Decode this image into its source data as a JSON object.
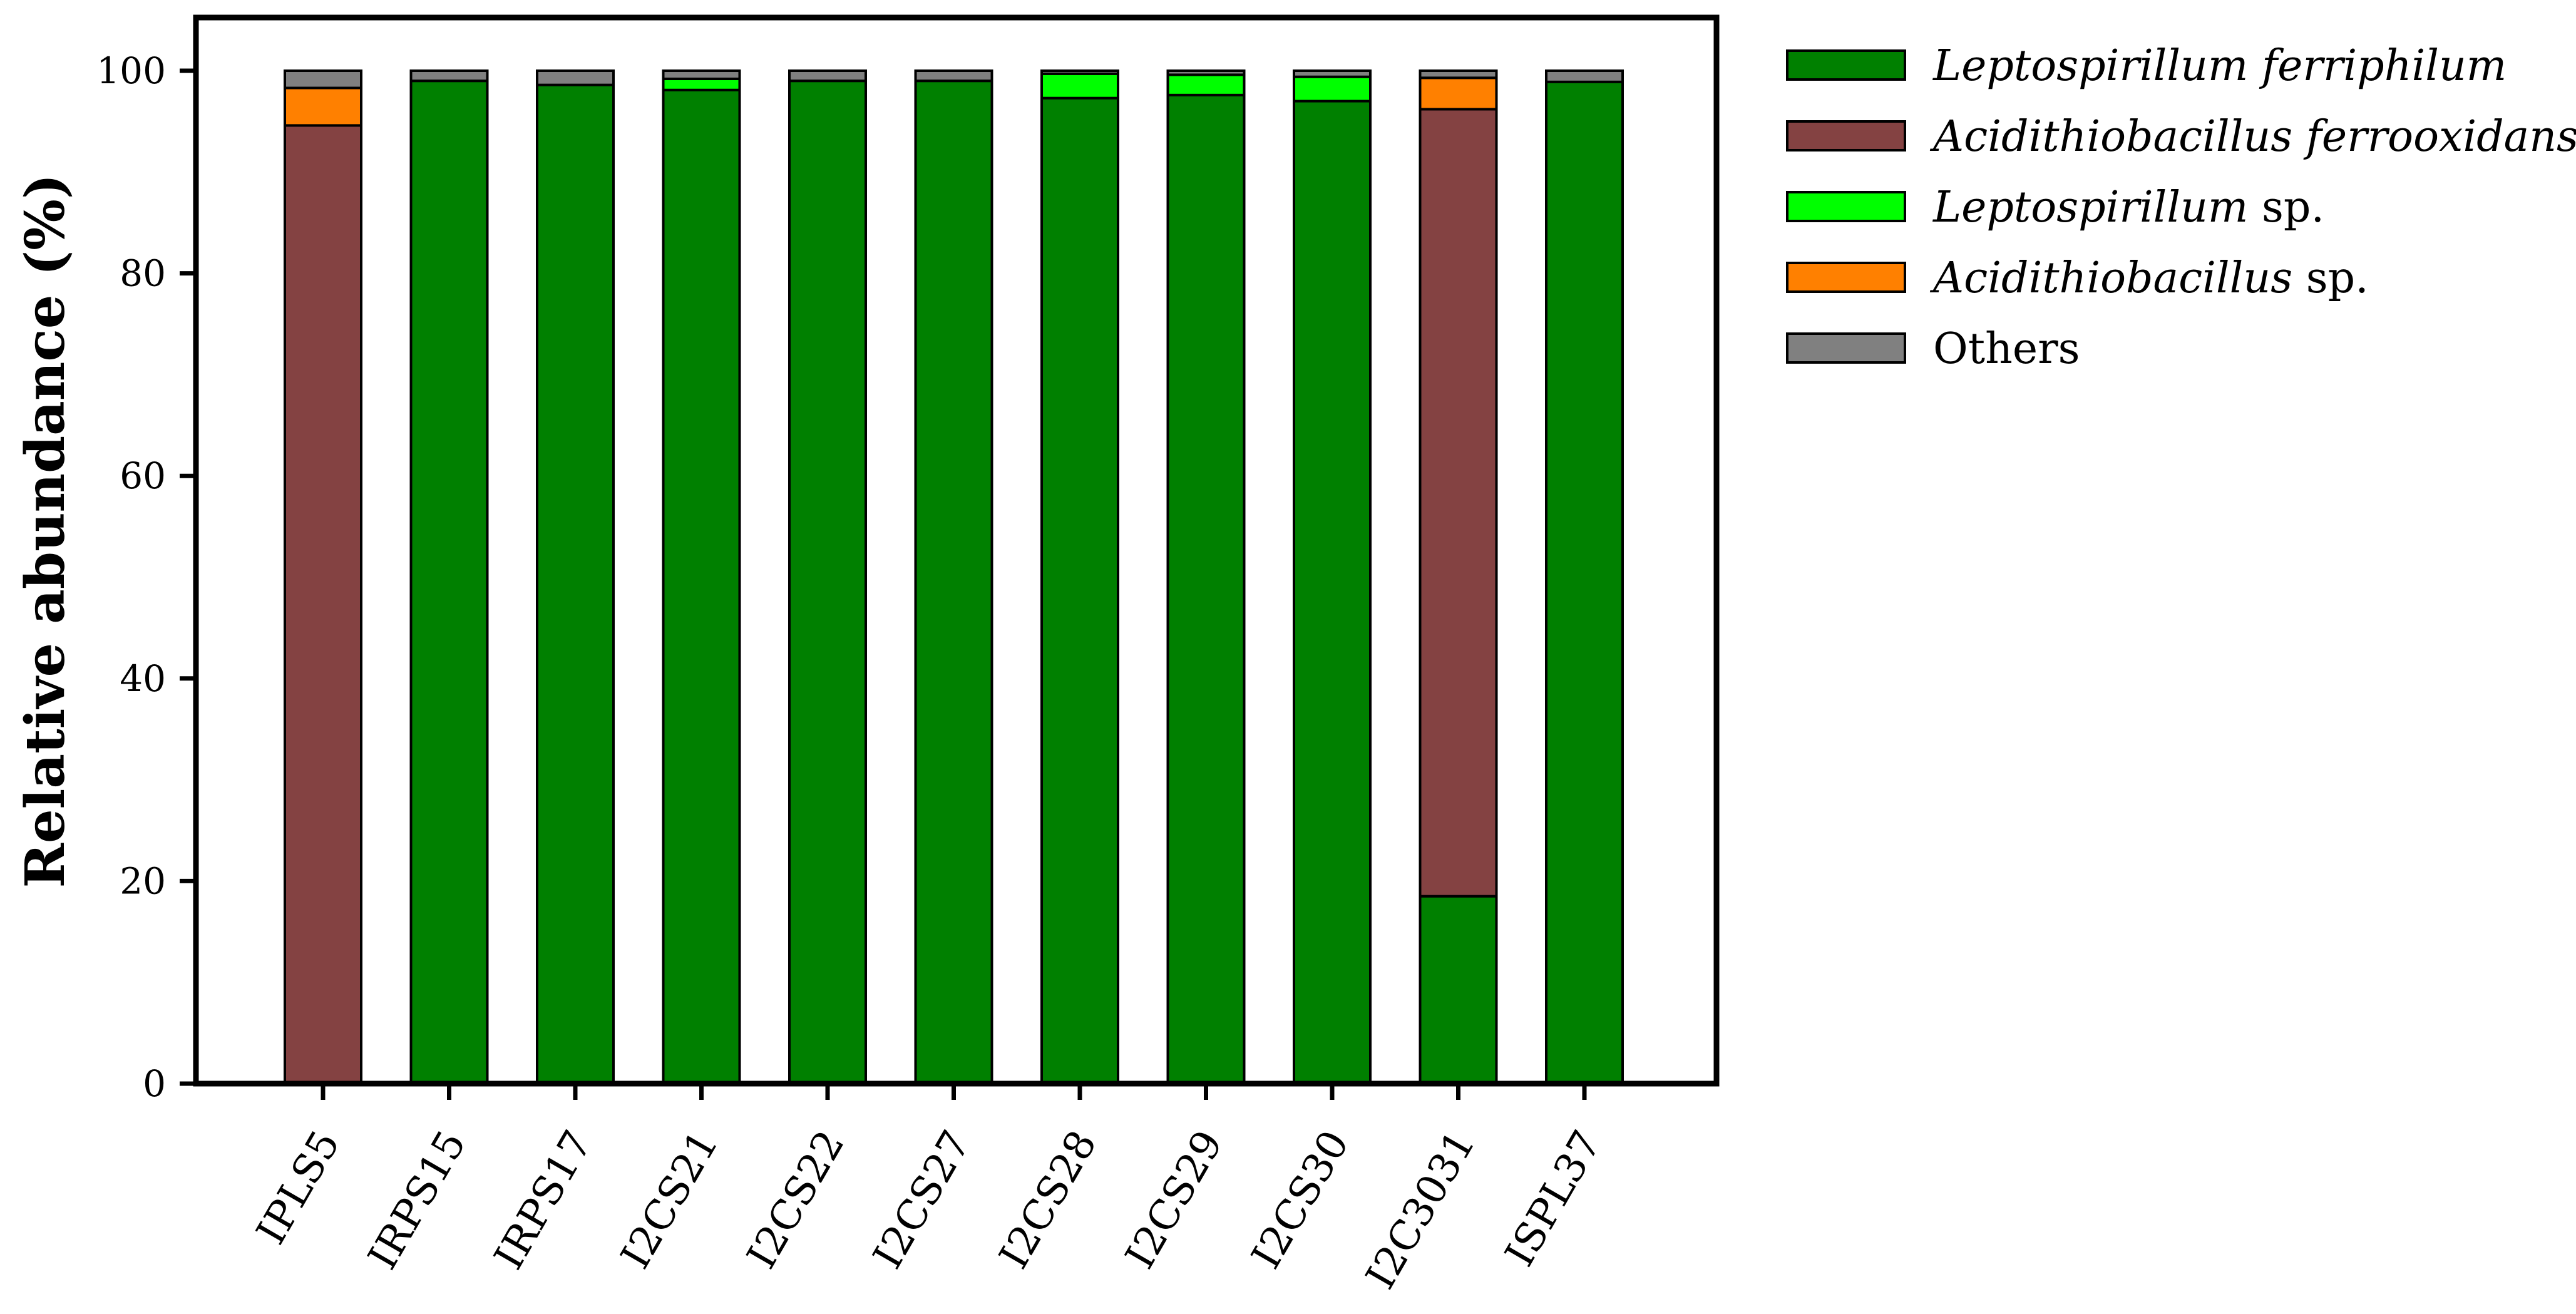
{
  "chart_data": {
    "type": "bar",
    "stacked": true,
    "ylabel": "Relative abundance (%)",
    "ylim": [
      0,
      100
    ],
    "yticks": [
      0,
      20,
      40,
      60,
      80,
      100
    ],
    "grid": false,
    "legend_position": "top-right",
    "categories": [
      "IPLS5",
      "IRPS15",
      "IRPS17",
      "I2CS21",
      "I2CS22",
      "I2CS27",
      "I2CS28",
      "I2CS29",
      "I2CS30",
      "I2C3031",
      "ISPL37"
    ],
    "series": [
      {
        "name": "Leptospirillum ferriphilum",
        "name_italic": "Leptospirillum ferriphilum",
        "name_suffix": "",
        "color": "#008000",
        "values": [
          0,
          99.0,
          98.6,
          98.1,
          99.0,
          99.0,
          97.3,
          97.6,
          97.0,
          18.5,
          98.9
        ]
      },
      {
        "name": "Acidithiobacillus ferrooxidans",
        "name_italic": "Acidithiobacillus ferrooxidans",
        "name_suffix": "",
        "color": "#844242",
        "values": [
          94.6,
          0,
          0,
          0,
          0,
          0,
          0,
          0,
          0,
          77.7,
          0
        ]
      },
      {
        "name": "Leptospirillum sp.",
        "name_italic": "Leptospirillum",
        "name_suffix": " sp.",
        "color": "#00ff00",
        "values": [
          0,
          0,
          0,
          1.1,
          0,
          0,
          2.4,
          2.0,
          2.4,
          0,
          0
        ]
      },
      {
        "name": "Acidithiobacillus sp.",
        "name_italic": "Acidithiobacillus",
        "name_suffix": " sp.",
        "color": "#ff8000",
        "values": [
          3.7,
          0,
          0,
          0,
          0,
          0,
          0,
          0,
          0,
          3.1,
          0
        ]
      },
      {
        "name": "Others",
        "name_italic": "",
        "name_suffix": "Others",
        "color": "#808080",
        "values": [
          1.7,
          1.0,
          1.4,
          0.8,
          1.0,
          1.0,
          0.3,
          0.4,
          0.6,
          0.7,
          1.1
        ]
      }
    ]
  }
}
